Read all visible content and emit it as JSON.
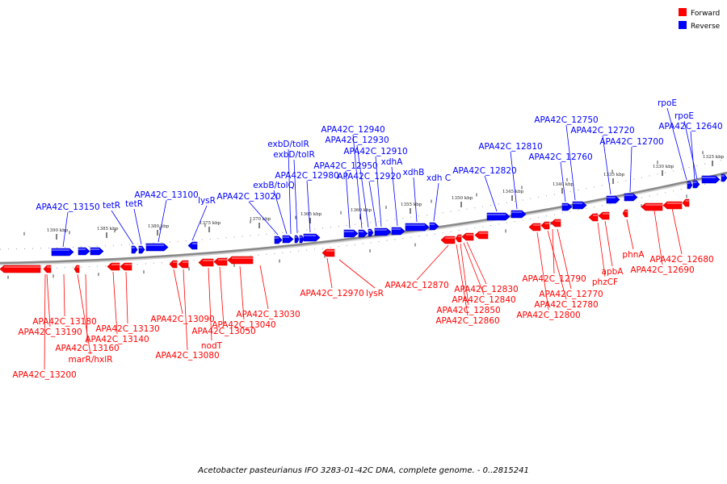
{
  "caption": "Acetobacter pasteurianus IFO 3283-01-42C DNA, complete genome. - 0..2815241",
  "legend": [
    {
      "label": "Forward",
      "color": "#ff0000"
    },
    {
      "label": "Reverse",
      "color": "#0000ff"
    }
  ],
  "colors": {
    "forward": "#ff0000",
    "forward_dark": "#cc0000",
    "reverse": "#0000ff",
    "reverse_dark": "#0000aa",
    "backbone": "#888888"
  },
  "ticks": [
    "1390 kbp",
    "1385 kbp",
    "1380 kbp",
    "1375 kbp",
    "1370 kbp",
    "1365 kbp",
    "1360 kbp",
    "1355 kbp",
    "1350 kbp",
    "1345 kbp",
    "1340 kbp",
    "1335 kbp",
    "1330 kbp",
    "1325 kbp"
  ],
  "reverse_labels": [
    "APA42C_13150",
    "tetR",
    "tetR",
    "APA42C_13100",
    "lysR",
    "APA42C_13020",
    "exbB/tolQ",
    "APA42C_12980",
    "exbD/tolR",
    "exbD/tolR",
    "APA42C_12950",
    "APA42C_12940",
    "APA42C_12930",
    "APA42C_12920",
    "APA42C_12910",
    "xdhA",
    "xdhB",
    "xdh C",
    "APA42C_12820",
    "APA42C_12810",
    "APA42C_12760",
    "APA42C_12750",
    "APA42C_12720",
    "APA42C_12700",
    "APA42C_12640",
    "rpoE",
    "rpoE"
  ],
  "forward_labels": [
    "APA42C_13180",
    "APA42C_13190",
    "APA42C_13200",
    "APA42C_13160",
    "marR/hxlR",
    "APA42C_13130",
    "APA42C_13140",
    "APA42C_13090",
    "APA42C_13080",
    "nodT",
    "APA42C_13050",
    "APA42C_13040",
    "APA42C_13030",
    "APA42C_12970",
    "lysR",
    "APA42C_12870",
    "APA42C_12830",
    "APA42C_12840",
    "APA42C_12850",
    "APA42C_12860",
    "APA42C_12790",
    "APA42C_12770",
    "APA42C_12780",
    "APA42C_12800",
    "apbA",
    "phzCF",
    "phnA",
    "APA42C_12680",
    "APA42C_12690"
  ]
}
